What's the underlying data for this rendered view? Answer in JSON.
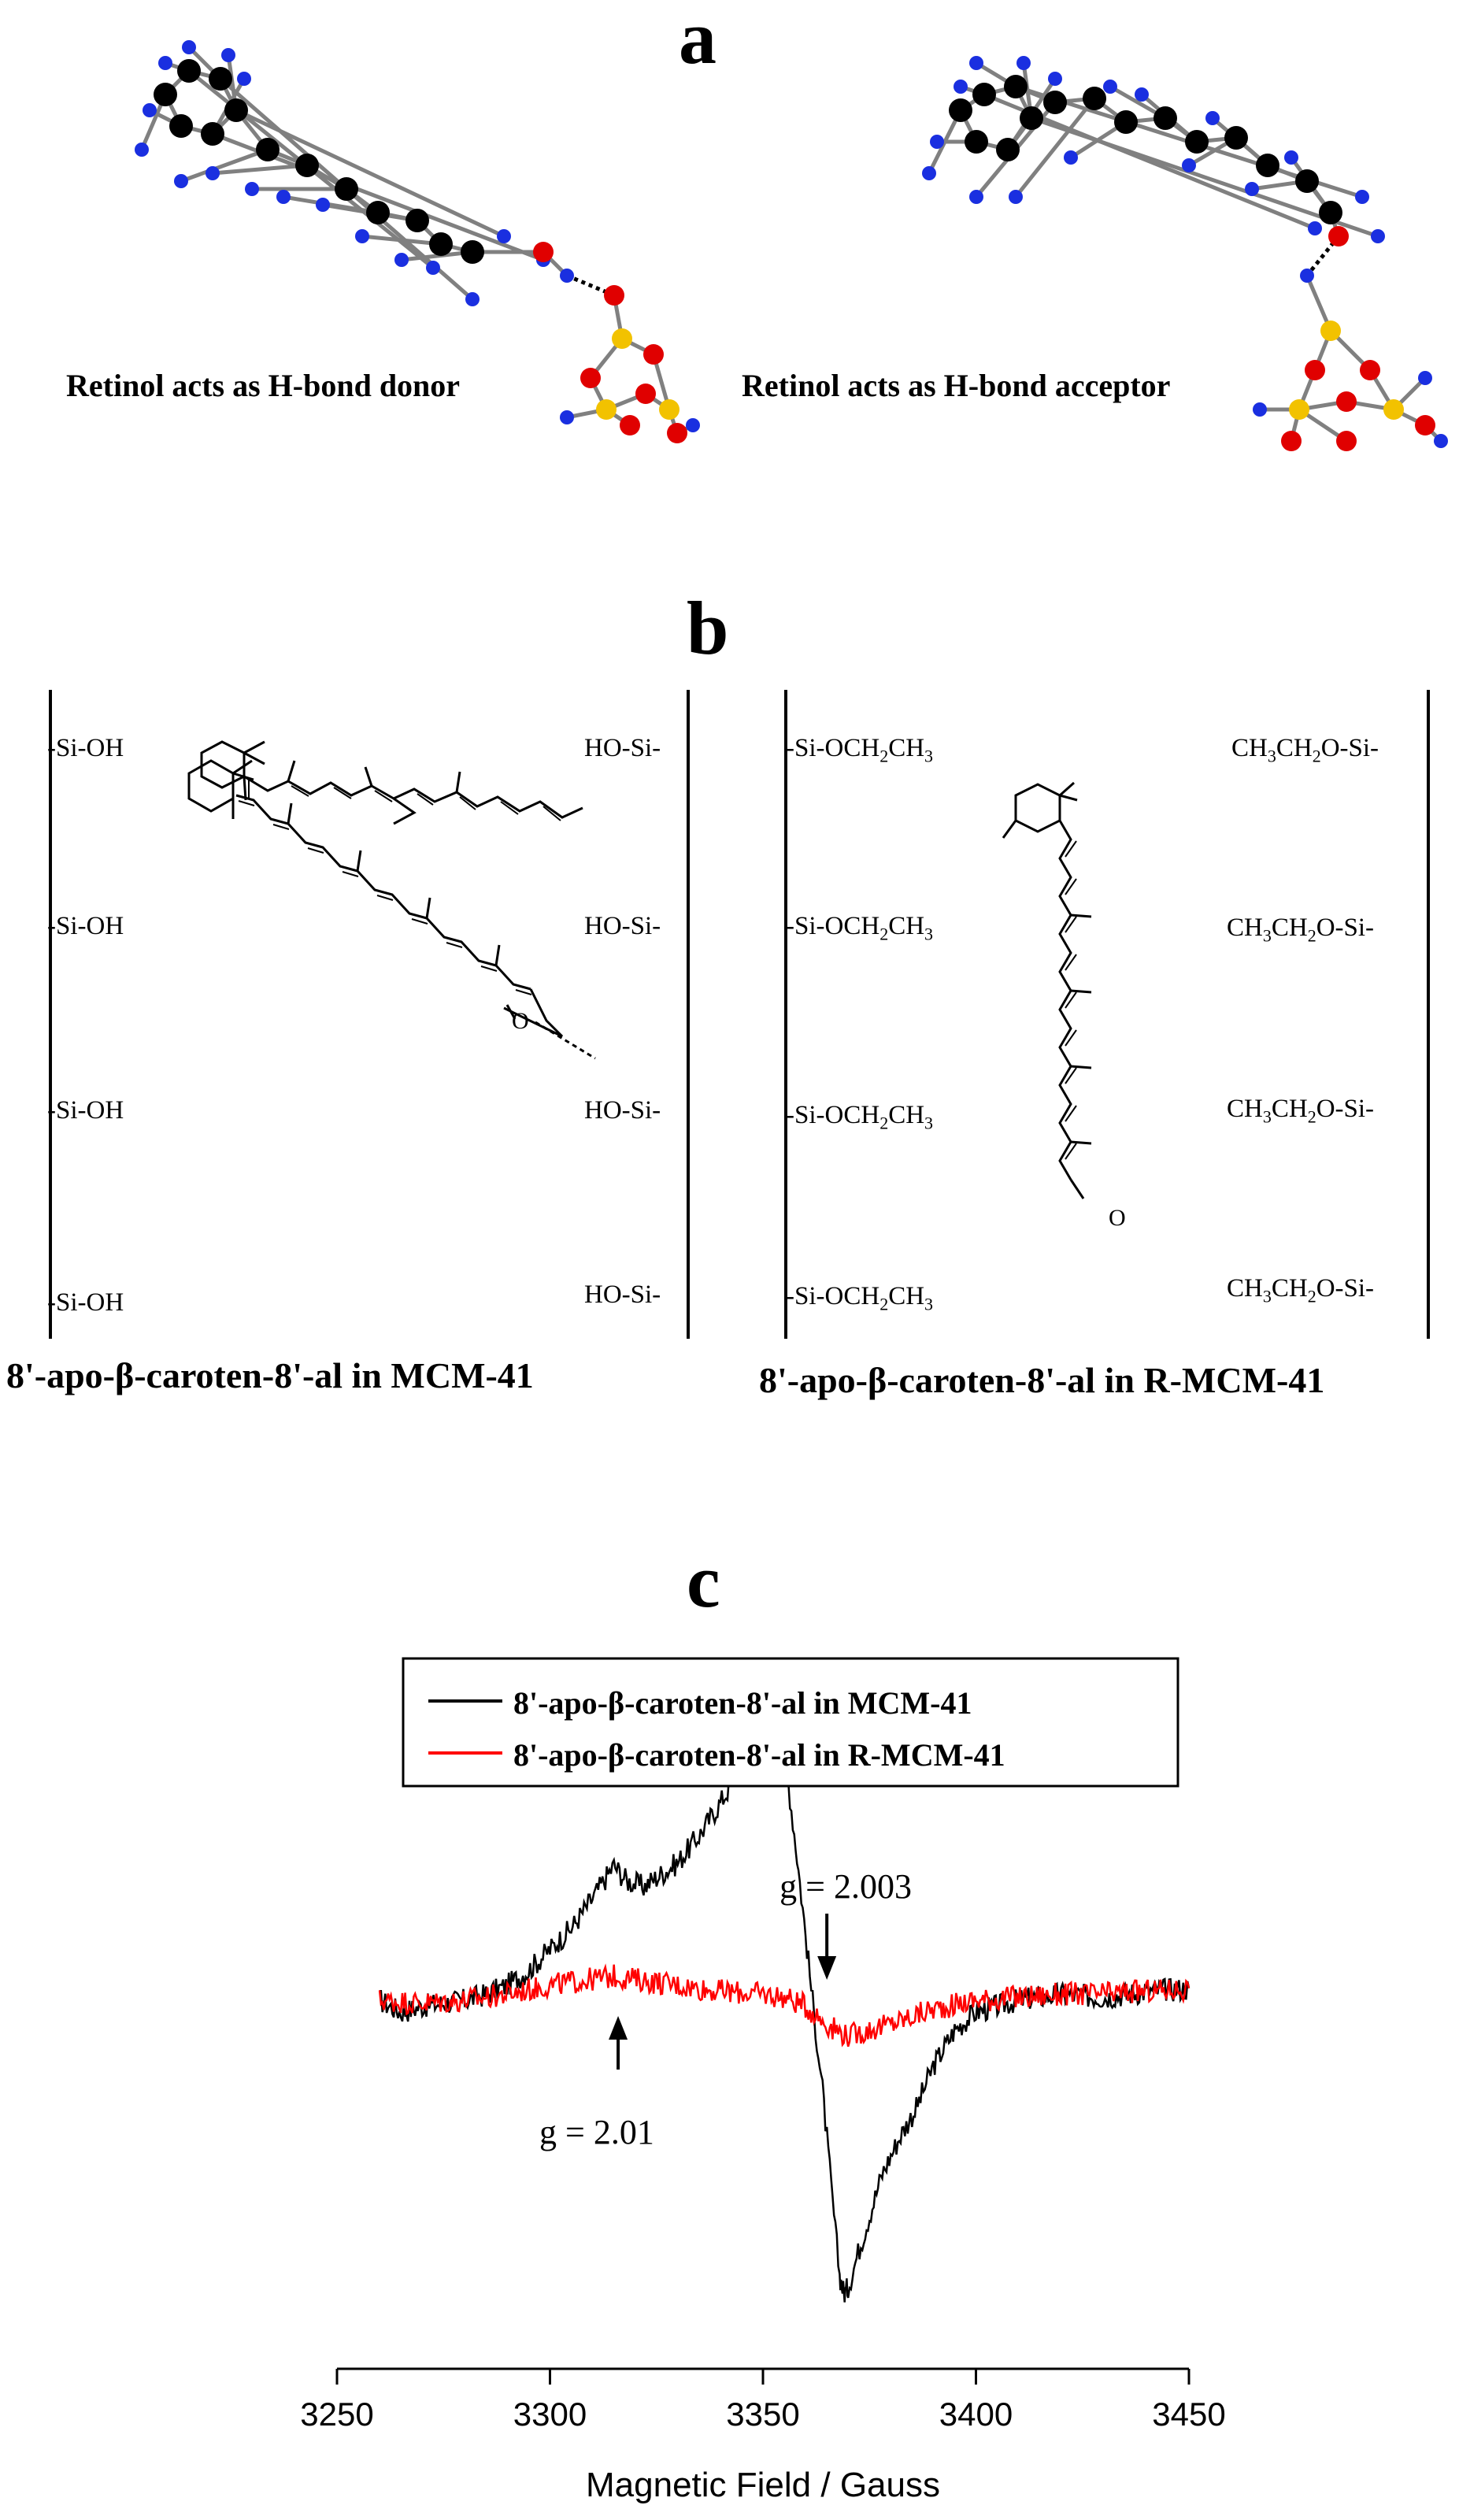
{
  "panels": {
    "a": {
      "letter": "a",
      "left_caption": "Retinol acts as H-bond donor",
      "right_caption": "Retinol acts as H-bond acceptor",
      "colors": {
        "carbon": "#000000",
        "hydrogen": "#1a2fe0",
        "oxygen": "#e00000",
        "silicon": "#f2c200",
        "bond": "#808080"
      }
    },
    "b": {
      "letter": "b",
      "left": {
        "left_wall": [
          "-Si-OH",
          "-Si-OH",
          "-Si-OH",
          "-Si-OH"
        ],
        "right_wall": [
          "HO-Si-",
          "HO-Si-",
          "HO-Si-",
          "HO-Si-"
        ],
        "caption": "8'-apo-β-caroten-8'-al in MCM-41",
        "oxygen_label": "O"
      },
      "right": {
        "left_wall": [
          "-Si-OCH2CH3",
          "-Si-OCH2CH3",
          "-Si-OCH2CH3",
          "-Si-OCH2CH3"
        ],
        "right_wall": [
          "CH3CH2O-Si-",
          "CH3CH2O-Si-",
          "CH3CH2O-Si-",
          "CH3CH2O-Si-"
        ],
        "caption": "8'-apo-β-caroten-8'-al in R-MCM-41",
        "oxygen_label": "O"
      }
    },
    "c": {
      "letter": "c"
    }
  },
  "chart_data": {
    "type": "line",
    "title": "",
    "xlabel": "Magnetic Field / Gauss",
    "ylabel": "",
    "xlim": [
      3250,
      3450
    ],
    "xticks": [
      3250,
      3300,
      3350,
      3400,
      3450
    ],
    "y_ticks_shown": false,
    "legend_position": "top-left",
    "series": [
      {
        "name": "8'-apo-β-caroten-8'-al in MCM-41",
        "color": "#000000",
        "x": [
          3260,
          3265,
          3270,
          3275,
          3280,
          3285,
          3290,
          3295,
          3300,
          3305,
          3310,
          3315,
          3318,
          3322,
          3326,
          3330,
          3335,
          3340,
          3345,
          3350,
          3352,
          3354,
          3356,
          3358,
          3360,
          3362,
          3364,
          3366,
          3368,
          3369,
          3370,
          3372,
          3375,
          3378,
          3382,
          3386,
          3390,
          3395,
          3400,
          3410,
          3420,
          3430,
          3440,
          3450
        ],
        "y": [
          0.0,
          -0.04,
          -0.02,
          -0.01,
          0.0,
          0.02,
          0.05,
          0.1,
          0.17,
          0.24,
          0.34,
          0.45,
          0.4,
          0.38,
          0.42,
          0.46,
          0.55,
          0.66,
          0.78,
          0.92,
          0.97,
          0.9,
          0.72,
          0.48,
          0.22,
          -0.05,
          -0.3,
          -0.62,
          -0.92,
          -0.98,
          -0.96,
          -0.86,
          -0.72,
          -0.58,
          -0.46,
          -0.36,
          -0.22,
          -0.1,
          -0.04,
          0.0,
          0.02,
          0.01,
          0.03,
          0.04
        ]
      },
      {
        "name": "8'-apo-β-caroten-8'-al in R-MCM-41",
        "color": "#ff0000",
        "x": [
          3260,
          3270,
          3280,
          3290,
          3300,
          3310,
          3315,
          3320,
          3330,
          3340,
          3350,
          3355,
          3360,
          3365,
          3370,
          3375,
          3380,
          3390,
          3400,
          3410,
          3420,
          3430,
          3440,
          3450
        ],
        "y": [
          0.0,
          -0.01,
          0.0,
          0.02,
          0.05,
          0.07,
          0.08,
          0.07,
          0.05,
          0.03,
          0.02,
          0.01,
          -0.02,
          -0.08,
          -0.12,
          -0.1,
          -0.08,
          -0.03,
          0.0,
          0.01,
          0.02,
          0.02,
          0.03,
          0.04
        ]
      }
    ],
    "annotations": [
      {
        "text": "g = 2.003",
        "field": 3365,
        "arrow": "down"
      },
      {
        "text": "g = 2.01",
        "field": 3316,
        "arrow": "up"
      }
    ]
  }
}
